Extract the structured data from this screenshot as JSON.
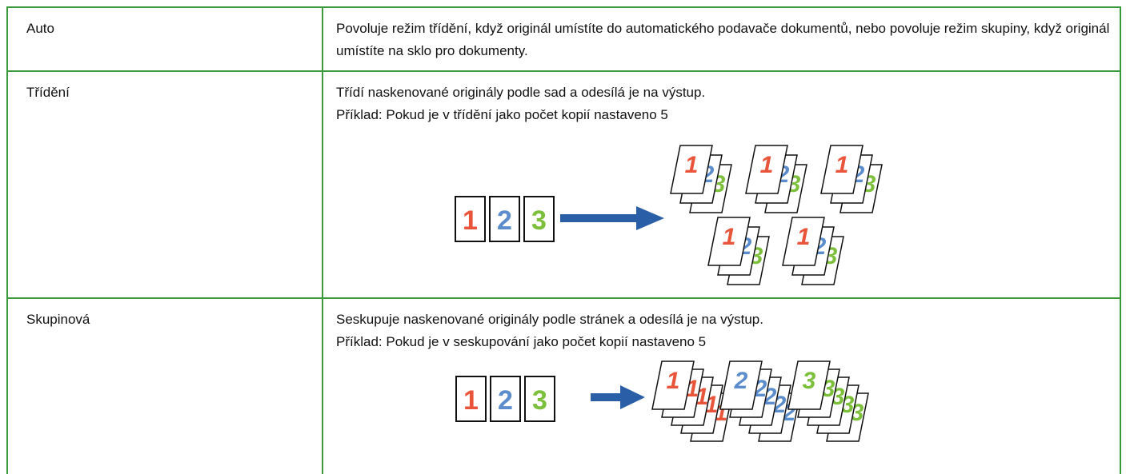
{
  "rows": [
    {
      "label": "Auto",
      "description": [
        "Povoluje režim třídění, když originál umístíte do automatického podavače dokumentů, nebo povoluje režim skupiny, když originál umístíte na sklo pro dokumenty."
      ]
    },
    {
      "label": "Třídění",
      "description": [
        "Třídí naskenované originály podle sad a odesílá je na výstup.",
        "Příklad: Pokud je v třídění jako počet kopií nastaveno 5"
      ]
    },
    {
      "label": "Skupinová",
      "description": [
        "Seskupuje naskenované originály podle stránek a odesílá je na výstup.",
        "Příklad: Pokud je v seskupování jako počet kopií nastaveno 5"
      ]
    }
  ],
  "illustration_digits": [
    "1",
    "2",
    "3"
  ]
}
